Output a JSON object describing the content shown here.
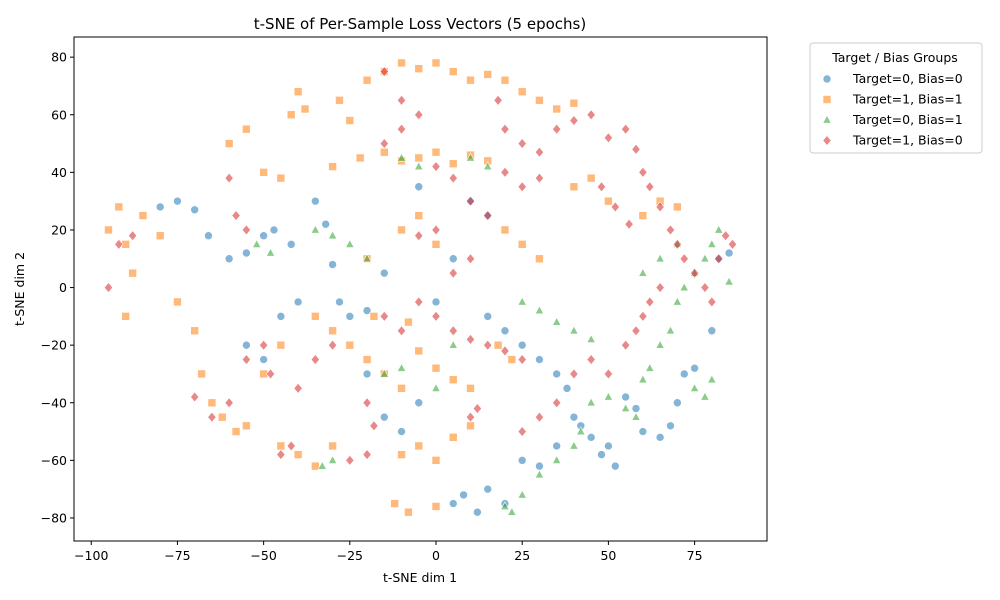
{
  "chart_data": {
    "type": "scatter",
    "title": "t-SNE of Per-Sample Loss Vectors (5 epochs)",
    "xlabel": "t-SNE dim 1",
    "ylabel": "t-SNE dim 2",
    "xlim": [
      -105,
      96
    ],
    "ylim": [
      -88,
      87
    ],
    "xticks": [
      -100,
      -75,
      -50,
      -25,
      0,
      25,
      50,
      75
    ],
    "yticks": [
      -80,
      -60,
      -40,
      -20,
      0,
      20,
      40,
      60,
      80
    ],
    "grid": false,
    "legend": {
      "title": "Target / Bias Groups",
      "placement": "outside-top-right"
    },
    "series": [
      {
        "name": "Target=0, Bias=0",
        "marker": "circle",
        "color": "#1f77b4",
        "points": [
          [
            -80,
            28
          ],
          [
            -75,
            30
          ],
          [
            -70,
            27
          ],
          [
            -66,
            18
          ],
          [
            -60,
            10
          ],
          [
            -55,
            12
          ],
          [
            -50,
            18
          ],
          [
            -47,
            20
          ],
          [
            -42,
            15
          ],
          [
            -35,
            30
          ],
          [
            -32,
            22
          ],
          [
            -30,
            8
          ],
          [
            -28,
            -5
          ],
          [
            -25,
            -10
          ],
          [
            -20,
            -30
          ],
          [
            -15,
            -45
          ],
          [
            -10,
            -50
          ],
          [
            -5,
            -40
          ],
          [
            0,
            -5
          ],
          [
            5,
            -75
          ],
          [
            8,
            -72
          ],
          [
            12,
            -78
          ],
          [
            15,
            -70
          ],
          [
            20,
            -75
          ],
          [
            25,
            -60
          ],
          [
            30,
            -62
          ],
          [
            35,
            -55
          ],
          [
            40,
            -45
          ],
          [
            42,
            -48
          ],
          [
            45,
            -52
          ],
          [
            48,
            -58
          ],
          [
            50,
            -55
          ],
          [
            52,
            -62
          ],
          [
            55,
            -38
          ],
          [
            58,
            -42
          ],
          [
            60,
            -50
          ],
          [
            65,
            -52
          ],
          [
            68,
            -48
          ],
          [
            70,
            -40
          ],
          [
            72,
            -30
          ],
          [
            75,
            -28
          ],
          [
            80,
            -15
          ],
          [
            82,
            10
          ],
          [
            85,
            12
          ],
          [
            -55,
            -20
          ],
          [
            -50,
            -25
          ],
          [
            -45,
            -10
          ],
          [
            -40,
            -5
          ],
          [
            15,
            -10
          ],
          [
            20,
            -15
          ],
          [
            25,
            -20
          ],
          [
            30,
            -25
          ],
          [
            35,
            -30
          ],
          [
            38,
            -35
          ],
          [
            -5,
            35
          ],
          [
            10,
            30
          ],
          [
            15,
            25
          ],
          [
            5,
            10
          ],
          [
            -15,
            5
          ],
          [
            -20,
            -8
          ]
        ]
      },
      {
        "name": "Target=1, Bias=1",
        "marker": "square",
        "color": "#ff7f0e",
        "points": [
          [
            -95,
            20
          ],
          [
            -92,
            28
          ],
          [
            -90,
            15
          ],
          [
            -88,
            5
          ],
          [
            -90,
            -10
          ],
          [
            -85,
            25
          ],
          [
            -80,
            18
          ],
          [
            -75,
            -5
          ],
          [
            -70,
            -15
          ],
          [
            -68,
            -30
          ],
          [
            -65,
            -40
          ],
          [
            -62,
            -45
          ],
          [
            -60,
            50
          ],
          [
            -55,
            55
          ],
          [
            -50,
            40
          ],
          [
            -45,
            38
          ],
          [
            -42,
            60
          ],
          [
            -40,
            68
          ],
          [
            -38,
            62
          ],
          [
            -30,
            42
          ],
          [
            -28,
            65
          ],
          [
            -25,
            58
          ],
          [
            -22,
            45
          ],
          [
            -20,
            72
          ],
          [
            -15,
            75
          ],
          [
            -10,
            78
          ],
          [
            -5,
            76
          ],
          [
            0,
            78
          ],
          [
            5,
            75
          ],
          [
            10,
            72
          ],
          [
            15,
            74
          ],
          [
            20,
            72
          ],
          [
            25,
            68
          ],
          [
            30,
            65
          ],
          [
            35,
            62
          ],
          [
            40,
            64
          ],
          [
            -15,
            47
          ],
          [
            -10,
            44
          ],
          [
            -5,
            45
          ],
          [
            0,
            47
          ],
          [
            5,
            43
          ],
          [
            10,
            46
          ],
          [
            15,
            44
          ],
          [
            -35,
            -10
          ],
          [
            -30,
            -15
          ],
          [
            -25,
            -20
          ],
          [
            -20,
            -25
          ],
          [
            -15,
            -30
          ],
          [
            -10,
            -35
          ],
          [
            -5,
            -22
          ],
          [
            0,
            -28
          ],
          [
            5,
            -32
          ],
          [
            10,
            -35
          ],
          [
            -45,
            -55
          ],
          [
            -40,
            -58
          ],
          [
            -35,
            -62
          ],
          [
            -30,
            -55
          ],
          [
            -10,
            -58
          ],
          [
            -5,
            -55
          ],
          [
            0,
            -60
          ],
          [
            5,
            -52
          ],
          [
            10,
            -48
          ],
          [
            -12,
            -75
          ],
          [
            -8,
            -78
          ],
          [
            0,
            -76
          ],
          [
            -55,
            -48
          ],
          [
            -58,
            -50
          ],
          [
            -50,
            -30
          ],
          [
            -45,
            -20
          ],
          [
            20,
            20
          ],
          [
            25,
            15
          ],
          [
            30,
            10
          ],
          [
            40,
            35
          ],
          [
            45,
            38
          ],
          [
            50,
            30
          ],
          [
            60,
            25
          ],
          [
            65,
            30
          ],
          [
            70,
            28
          ],
          [
            -20,
            10
          ],
          [
            -10,
            20
          ],
          [
            -5,
            25
          ],
          [
            0,
            15
          ],
          [
            -18,
            -10
          ],
          [
            -8,
            -12
          ],
          [
            18,
            -20
          ],
          [
            22,
            -25
          ]
        ]
      },
      {
        "name": "Target=0, Bias=1",
        "marker": "triangle",
        "color": "#2ca02c",
        "points": [
          [
            -52,
            15
          ],
          [
            -48,
            12
          ],
          [
            -33,
            -62
          ],
          [
            -30,
            -60
          ],
          [
            -10,
            45
          ],
          [
            -5,
            42
          ],
          [
            10,
            45
          ],
          [
            15,
            42
          ],
          [
            20,
            -76
          ],
          [
            22,
            -78
          ],
          [
            25,
            -72
          ],
          [
            30,
            -65
          ],
          [
            35,
            -60
          ],
          [
            40,
            -55
          ],
          [
            42,
            -50
          ],
          [
            45,
            -40
          ],
          [
            50,
            -38
          ],
          [
            55,
            -42
          ],
          [
            58,
            -45
          ],
          [
            60,
            -32
          ],
          [
            62,
            -28
          ],
          [
            65,
            -20
          ],
          [
            68,
            -15
          ],
          [
            70,
            -5
          ],
          [
            72,
            0
          ],
          [
            75,
            5
          ],
          [
            78,
            10
          ],
          [
            80,
            15
          ],
          [
            82,
            20
          ],
          [
            85,
            2
          ],
          [
            -35,
            20
          ],
          [
            -30,
            18
          ],
          [
            -25,
            15
          ],
          [
            -20,
            10
          ],
          [
            25,
            -5
          ],
          [
            30,
            -8
          ],
          [
            35,
            -12
          ],
          [
            40,
            -15
          ],
          [
            45,
            -18
          ],
          [
            60,
            5
          ],
          [
            65,
            10
          ],
          [
            70,
            15
          ],
          [
            75,
            -35
          ],
          [
            78,
            -38
          ],
          [
            80,
            -32
          ],
          [
            -15,
            -30
          ],
          [
            -10,
            -28
          ],
          [
            5,
            -20
          ],
          [
            0,
            -35
          ]
        ]
      },
      {
        "name": "Target=1, Bias=0",
        "marker": "diamond",
        "color": "#d62728",
        "points": [
          [
            -95,
            0
          ],
          [
            -92,
            15
          ],
          [
            -88,
            18
          ],
          [
            -60,
            38
          ],
          [
            -58,
            25
          ],
          [
            -55,
            20
          ],
          [
            -48,
            -30
          ],
          [
            -45,
            -58
          ],
          [
            -42,
            -55
          ],
          [
            -25,
            -60
          ],
          [
            -20,
            -58
          ],
          [
            -15,
            -10
          ],
          [
            -10,
            -15
          ],
          [
            -5,
            -5
          ],
          [
            0,
            -10
          ],
          [
            5,
            -15
          ],
          [
            10,
            -18
          ],
          [
            15,
            -20
          ],
          [
            20,
            -22
          ],
          [
            25,
            -25
          ],
          [
            -15,
            75
          ],
          [
            -10,
            65
          ],
          [
            -5,
            60
          ],
          [
            0,
            42
          ],
          [
            5,
            38
          ],
          [
            10,
            30
          ],
          [
            15,
            25
          ],
          [
            18,
            65
          ],
          [
            20,
            55
          ],
          [
            25,
            50
          ],
          [
            30,
            47
          ],
          [
            35,
            55
          ],
          [
            40,
            58
          ],
          [
            45,
            60
          ],
          [
            50,
            52
          ],
          [
            55,
            55
          ],
          [
            58,
            48
          ],
          [
            60,
            40
          ],
          [
            62,
            35
          ],
          [
            65,
            28
          ],
          [
            68,
            20
          ],
          [
            70,
            15
          ],
          [
            72,
            10
          ],
          [
            75,
            5
          ],
          [
            78,
            0
          ],
          [
            80,
            -5
          ],
          [
            82,
            10
          ],
          [
            84,
            18
          ],
          [
            86,
            15
          ],
          [
            55,
            -20
          ],
          [
            58,
            -15
          ],
          [
            60,
            -10
          ],
          [
            62,
            -5
          ],
          [
            65,
            0
          ],
          [
            40,
            -30
          ],
          [
            45,
            -25
          ],
          [
            50,
            -30
          ],
          [
            35,
            -40
          ],
          [
            30,
            -45
          ],
          [
            25,
            -50
          ],
          [
            -50,
            -20
          ],
          [
            -55,
            -25
          ],
          [
            -60,
            -40
          ],
          [
            -65,
            -45
          ],
          [
            -70,
            -38
          ],
          [
            -30,
            -20
          ],
          [
            -35,
            -25
          ],
          [
            -40,
            -35
          ],
          [
            5,
            5
          ],
          [
            10,
            10
          ],
          [
            0,
            20
          ],
          [
            -5,
            18
          ],
          [
            20,
            40
          ],
          [
            25,
            35
          ],
          [
            30,
            38
          ],
          [
            -10,
            55
          ],
          [
            -15,
            50
          ],
          [
            48,
            35
          ],
          [
            52,
            28
          ],
          [
            56,
            22
          ],
          [
            -20,
            -40
          ],
          [
            -18,
            -48
          ],
          [
            10,
            -45
          ],
          [
            12,
            -42
          ]
        ]
      }
    ]
  }
}
